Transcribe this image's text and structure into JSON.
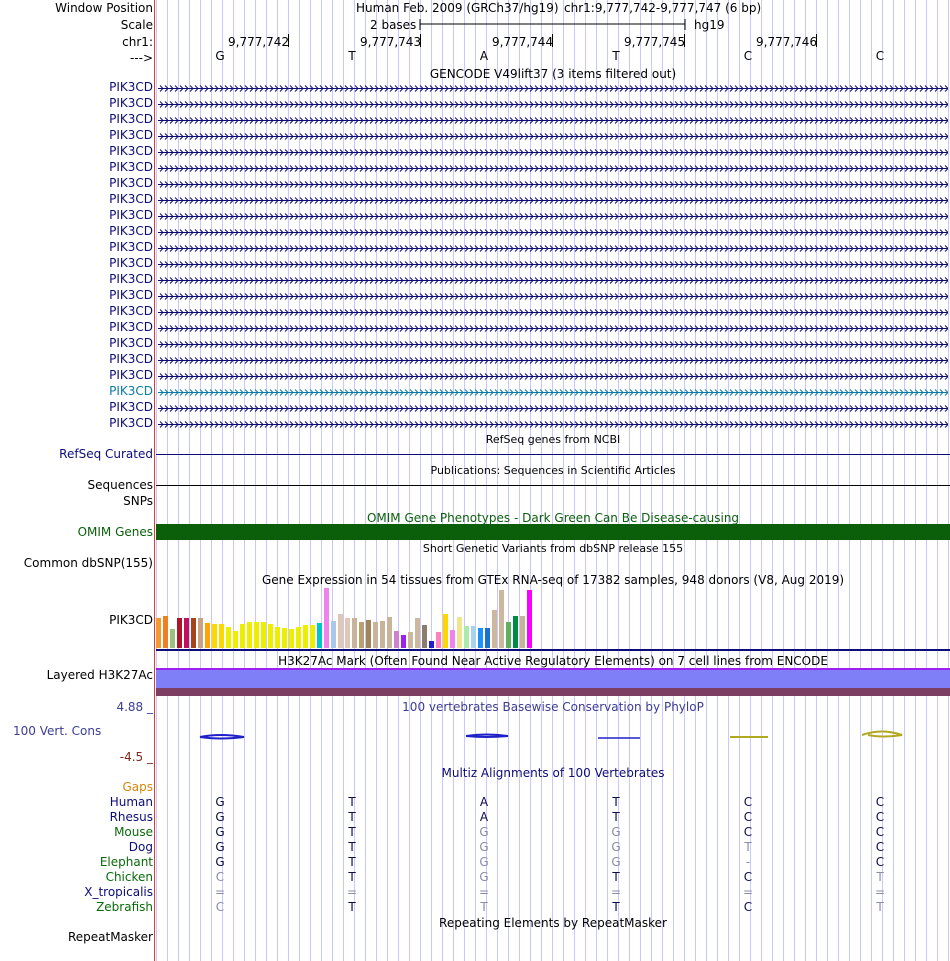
{
  "header": {
    "window_position_label": "Window Position",
    "scale_label": "Scale",
    "chrom_label": "chr1:",
    "strand_label": "--->",
    "assembly_title": "Human Feb. 2009 (GRCh37/hg19)",
    "position": "chr1:9,777,742-9,777,747 (6 bp)",
    "scale_text": "2 bases",
    "db": "hg19",
    "coords": [
      "9,777,742",
      "9,777,743",
      "9,777,744",
      "9,777,745",
      "9,777,746"
    ],
    "bases": [
      "G",
      "T",
      "A",
      "T",
      "C",
      "C"
    ]
  },
  "gencode": {
    "title": "GENCODE V49lift37 (3 items filtered out)",
    "transcript_label": "PIK3CD",
    "highlight_index": 19,
    "color": "#0c0c78",
    "highlight_color": "#0a7ba6"
  },
  "refseq": {
    "title": "RefSeq genes from NCBI",
    "label": "RefSeq Curated"
  },
  "publications": {
    "title": "Publications: Sequences in Scientific Articles",
    "label1": "Sequences",
    "label2": "SNPs"
  },
  "omim": {
    "title": "OMIM Gene Phenotypes - Dark Green Can Be Disease-causing",
    "label": "OMIM Genes",
    "color": "#0b5f0b"
  },
  "dbsnp": {
    "title": "Short Genetic Variants from dbSNP release 155",
    "label": "Common dbSNP(155)"
  },
  "gtex": {
    "title": "Gene Expression in 54 tissues from GTEx RNA-seq of 17382 samples, 948 donors (V8, Aug 2019)",
    "label": "PIK3CD"
  },
  "h3k27ac": {
    "title": "H3K27Ac Mark (Often Found Near Active Regulatory Elements) on 7 cell lines from ENCODE",
    "label": "Layered H3K27Ac",
    "color_top": "#7f7ff7",
    "color_bottom": "#7c3f63"
  },
  "phylop": {
    "title": "100 vertebrates Basewise Conservation by PhyloP",
    "label": "100 Vert. Cons",
    "max_label": "4.88 _",
    "min_label": "-4.5 _"
  },
  "multiz": {
    "title": "Multiz Alignments of 100 Vertebrates",
    "gaps_label": "Gaps",
    "species": [
      {
        "name": "Human",
        "color": "#0c0c78",
        "bases": [
          "G",
          "T",
          "A",
          "T",
          "C",
          "C"
        ],
        "faded": [
          false,
          false,
          false,
          false,
          false,
          false
        ]
      },
      {
        "name": "Rhesus",
        "color": "#0c0c78",
        "bases": [
          "G",
          "T",
          "A",
          "T",
          "C",
          "C"
        ],
        "faded": [
          false,
          false,
          false,
          false,
          false,
          false
        ]
      },
      {
        "name": "Mouse",
        "color": "#0a6a0a",
        "bases": [
          "G",
          "T",
          "G",
          "G",
          "C",
          "C"
        ],
        "faded": [
          false,
          false,
          true,
          true,
          false,
          false
        ]
      },
      {
        "name": "Dog",
        "color": "#0c0c78",
        "bases": [
          "G",
          "T",
          "G",
          "G",
          "T",
          "C"
        ],
        "faded": [
          false,
          false,
          true,
          true,
          true,
          false
        ]
      },
      {
        "name": "Elephant",
        "color": "#0a6a0a",
        "bases": [
          "G",
          "T",
          "G",
          "G",
          "-",
          "C"
        ],
        "faded": [
          false,
          false,
          true,
          true,
          true,
          false
        ]
      },
      {
        "name": "Chicken",
        "color": "#0a6a0a",
        "bases": [
          "C",
          "T",
          "G",
          "T",
          "C",
          "T"
        ],
        "faded": [
          true,
          false,
          true,
          false,
          false,
          true
        ]
      },
      {
        "name": "X_tropicalis",
        "color": "#0c0c78",
        "bases": [
          "=",
          "=",
          "=",
          "=",
          "=",
          "="
        ],
        "faded": [
          true,
          true,
          true,
          true,
          true,
          true
        ]
      },
      {
        "name": "Zebrafish",
        "color": "#0a6a0a",
        "bases": [
          "C",
          "T",
          "T",
          "T",
          "C",
          "T"
        ],
        "faded": [
          true,
          false,
          true,
          false,
          false,
          true
        ]
      }
    ]
  },
  "repeatmasker": {
    "title": "Repeating Elements by RepeatMasker",
    "label": "RepeatMasker"
  },
  "colors": {
    "gaps": "#d4860b",
    "gridline": "#c8c8ff",
    "phylop_label": "#3c3c96",
    "phylop_min": "#7c2a1a"
  }
}
